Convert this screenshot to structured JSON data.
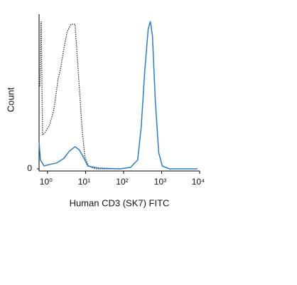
{
  "chart_data": {
    "type": "line",
    "xlabel": "Human CD3 (SK7) FITC",
    "ylabel": "Count",
    "xscale": "log",
    "xlim": [
      0.6,
      10000
    ],
    "ylim": [
      0,
      100
    ],
    "xticks": [
      {
        "value": 1,
        "label": "10⁰"
      },
      {
        "value": 10,
        "label": "10¹"
      },
      {
        "value": 100,
        "label": "10²"
      },
      {
        "value": 1000,
        "label": "10³"
      },
      {
        "value": 10000,
        "label": "10⁴"
      }
    ],
    "yticks": [
      0
    ],
    "series": [
      {
        "color": "#333333",
        "dash": true,
        "x": [
          0.63,
          0.68,
          0.74,
          0.88,
          1.14,
          1.47,
          1.9,
          2.25,
          2.67,
          3.3,
          4.1,
          5.3,
          5.7,
          6.8,
          8.1,
          9.6,
          11.9,
          18,
          53
        ],
        "values": [
          56,
          100,
          23,
          25,
          30,
          40,
          61,
          69,
          81,
          93,
          98,
          98,
          86,
          57,
          27,
          8,
          2,
          0,
          0
        ]
      },
      {
        "color": "#2e7cc4",
        "dash": false,
        "x": [
          0.6,
          0.65,
          0.81,
          1.14,
          1.74,
          2.67,
          3.75,
          5.3,
          6.8,
          8.8,
          11.4,
          22.5,
          81,
          153,
          234,
          290,
          360,
          445,
          505,
          575,
          680,
          840,
          1040,
          1600,
          8800
        ],
        "values": [
          18,
          6,
          2,
          3,
          4,
          7,
          12,
          15,
          13,
          8,
          2,
          0.5,
          0,
          1,
          6,
          28,
          66,
          95,
          100,
          90,
          47,
          11,
          2,
          0,
          0
        ]
      }
    ]
  }
}
